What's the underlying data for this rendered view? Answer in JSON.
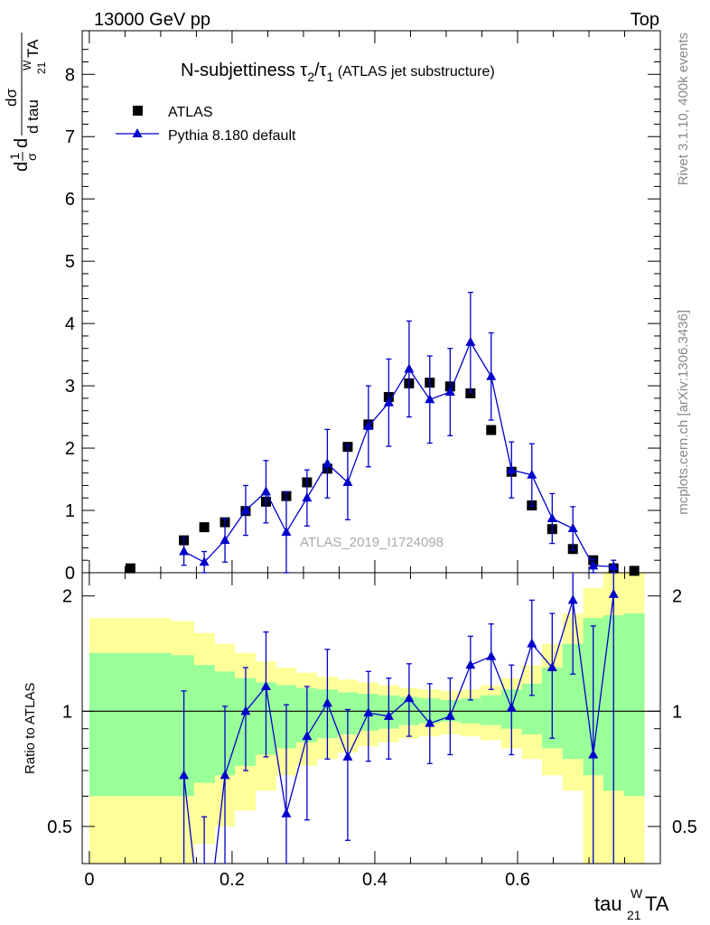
{
  "header": {
    "left": "13000 GeV pp",
    "right": "Top"
  },
  "side_text": {
    "rivet": "Rivet 3.1.10,  400k events",
    "mcplots": "mcplots.cern.ch [arXiv:1306.3436]"
  },
  "watermark": "ATLAS_2019_I1724098",
  "title": {
    "main": "N-subjettiness τ",
    "sub1": "2",
    "slash": "/τ",
    "sub2": "1",
    "paren": " (ATLAS jet substructure)"
  },
  "ylabel": {
    "d": "d",
    "one": "1",
    "sigma": "σ",
    "dsigma": "dσ",
    "dtau": "d tau",
    "sup": "W",
    "sub": "21",
    "ta": "TA"
  },
  "xlabel": {
    "base": "tau",
    "sup": "W",
    "sub": "21",
    "ta": "TA"
  },
  "ratio_ylabel": "Ratio to ATLAS",
  "legend": {
    "atlas": "ATLAS",
    "pythia": "Pythia 8.180 default"
  },
  "colors": {
    "mc": "#0000cc",
    "data": "#000000",
    "band_inner": "#99ff99",
    "band_outer": "#ffff99"
  },
  "chart_data": {
    "type": "scatter",
    "x_range": [
      -0.01,
      0.8
    ],
    "main_ylim": [
      0,
      8.7
    ],
    "ratio_ylim": [
      0.4,
      2.3
    ],
    "main_yticks": [
      "0",
      "1",
      "2",
      "3",
      "4",
      "5",
      "6",
      "7",
      "8"
    ],
    "xticks": [
      "0",
      "0.2",
      "0.4",
      "0.6"
    ],
    "ratio_yticks": [
      "0.5",
      "1",
      "2"
    ],
    "legend_position": "top-left",
    "atlas": {
      "x": [
        0.0575,
        0.1325,
        0.161,
        0.19,
        0.219,
        0.2475,
        0.276,
        0.305,
        0.3335,
        0.362,
        0.391,
        0.4195,
        0.448,
        0.477,
        0.5055,
        0.534,
        0.563,
        0.5915,
        0.62,
        0.6485,
        0.6775,
        0.706,
        0.7345,
        0.7635
      ],
      "y": [
        0.07,
        0.52,
        0.73,
        0.81,
        0.99,
        1.14,
        1.23,
        1.45,
        1.67,
        2.02,
        2.38,
        2.82,
        3.04,
        3.05,
        2.99,
        2.88,
        2.29,
        1.62,
        1.08,
        0.7,
        0.38,
        0.2,
        0.07,
        0.03
      ]
    },
    "pythia": {
      "x": [
        0.1325,
        0.161,
        0.19,
        0.219,
        0.2475,
        0.276,
        0.305,
        0.3335,
        0.362,
        0.391,
        0.4195,
        0.448,
        0.477,
        0.5055,
        0.534,
        0.563,
        0.5915,
        0.62,
        0.6485,
        0.6775,
        0.706,
        0.7345
      ],
      "y": [
        0.34,
        0.17,
        0.52,
        1.0,
        1.3,
        0.65,
        1.2,
        1.75,
        1.45,
        2.35,
        2.73,
        3.27,
        2.78,
        2.9,
        3.7,
        3.15,
        1.65,
        1.57,
        0.87,
        0.71,
        0.11,
        0.1
      ],
      "err_lo": [
        0.22,
        0.17,
        0.35,
        0.4,
        0.5,
        0.65,
        0.45,
        0.55,
        0.6,
        0.65,
        0.7,
        0.77,
        0.7,
        0.7,
        0.8,
        0.7,
        0.45,
        0.5,
        0.4,
        0.35,
        0.11,
        0.1
      ],
      "err_hi": [
        0.22,
        0.17,
        0.35,
        0.4,
        0.5,
        0.65,
        0.45,
        0.55,
        0.6,
        0.65,
        0.7,
        0.77,
        0.7,
        0.7,
        0.8,
        0.7,
        0.45,
        0.5,
        0.4,
        0.35,
        0.11,
        0.1
      ]
    },
    "ratio": {
      "x": [
        0.1325,
        0.161,
        0.19,
        0.219,
        0.2475,
        0.276,
        0.305,
        0.3335,
        0.362,
        0.391,
        0.4195,
        0.448,
        0.477,
        0.5055,
        0.534,
        0.563,
        0.5915,
        0.62,
        0.6485,
        0.6775,
        0.706,
        0.7345
      ],
      "y": [
        0.68,
        0.23,
        0.68,
        1.0,
        1.16,
        0.54,
        0.86,
        1.05,
        0.76,
        0.99,
        0.97,
        1.08,
        0.93,
        0.97,
        1.32,
        1.39,
        1.02,
        1.5,
        1.3,
        1.95,
        0.77,
        2.02
      ],
      "err_lo": [
        0.45,
        0.3,
        0.4,
        0.3,
        0.4,
        0.54,
        0.34,
        0.3,
        0.3,
        0.25,
        0.22,
        0.22,
        0.2,
        0.2,
        0.25,
        0.25,
        0.25,
        0.4,
        0.45,
        0.7,
        0.77,
        1.8
      ],
      "err_hi": [
        0.45,
        0.3,
        0.35,
        0.3,
        0.45,
        0.5,
        0.3,
        0.4,
        0.25,
        0.28,
        0.25,
        0.25,
        0.25,
        0.25,
        0.25,
        0.3,
        0.3,
        0.45,
        0.5,
        0.7,
        0.9,
        1.8
      ]
    },
    "bands": {
      "edges": [
        0.0,
        0.115,
        0.147,
        0.176,
        0.204,
        0.233,
        0.262,
        0.29,
        0.319,
        0.348,
        0.376,
        0.405,
        0.434,
        0.462,
        0.491,
        0.52,
        0.548,
        0.577,
        0.606,
        0.634,
        0.663,
        0.692,
        0.72,
        0.749,
        0.778
      ],
      "inner_lo": [
        0.6,
        0.6,
        0.65,
        0.68,
        0.72,
        0.77,
        0.8,
        0.83,
        0.85,
        0.87,
        0.89,
        0.9,
        0.92,
        0.93,
        0.94,
        0.93,
        0.92,
        0.9,
        0.87,
        0.8,
        0.75,
        0.68,
        0.62,
        0.6
      ],
      "inner_hi": [
        1.42,
        1.4,
        1.32,
        1.27,
        1.22,
        1.19,
        1.17,
        1.15,
        1.14,
        1.12,
        1.11,
        1.1,
        1.09,
        1.08,
        1.07,
        1.08,
        1.1,
        1.14,
        1.18,
        1.3,
        1.5,
        1.75,
        1.78,
        1.8
      ],
      "outer_lo": [
        0.4,
        0.4,
        0.45,
        0.5,
        0.55,
        0.62,
        0.68,
        0.72,
        0.75,
        0.78,
        0.81,
        0.83,
        0.85,
        0.86,
        0.87,
        0.86,
        0.84,
        0.8,
        0.75,
        0.68,
        0.62,
        0.4,
        0.4,
        0.4
      ],
      "outer_hi": [
        1.75,
        1.72,
        1.6,
        1.5,
        1.42,
        1.35,
        1.3,
        1.26,
        1.23,
        1.21,
        1.19,
        1.17,
        1.15,
        1.14,
        1.13,
        1.14,
        1.17,
        1.22,
        1.32,
        1.5,
        1.8,
        2.1,
        2.3,
        2.3
      ]
    }
  }
}
